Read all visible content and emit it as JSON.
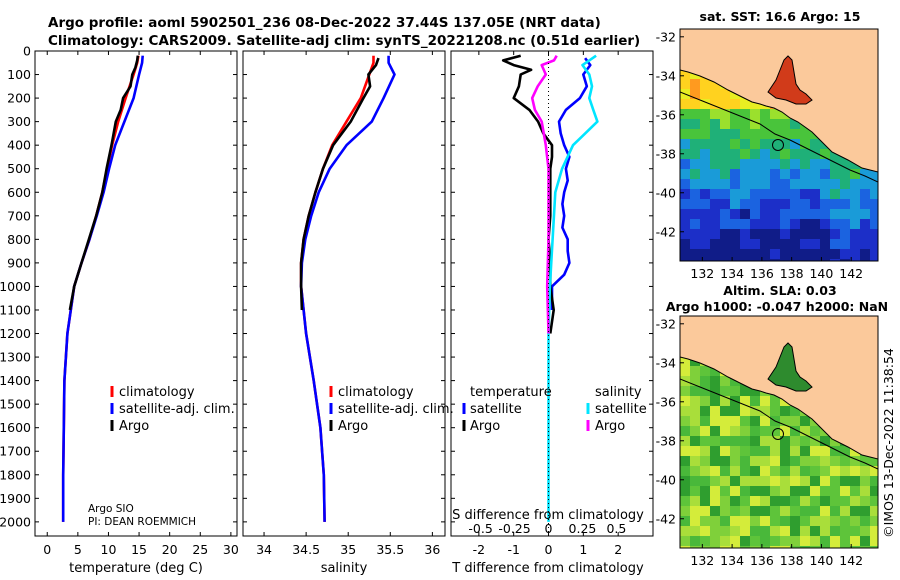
{
  "title": {
    "line1": "Argo profile: aoml 5902501_236 08-Dec-2022 37.44S 137.05E (NRT data)",
    "line2": "Climatology: CARS2009. Satellite-adj clim: synTS_20221208.nc (0.51d earlier)"
  },
  "credit": "©IMOS 13-Dec-2022 11:38:54",
  "colors": {
    "climatology": "#ff0000",
    "satellite": "#0000ff",
    "argo": "#000000",
    "sat_salinity": "#00e5ff",
    "argo_salinity": "#ff00ff",
    "land": "#fbc99b",
    "coast": "#000000"
  },
  "chart_data": [
    {
      "type": "line",
      "name": "temperature",
      "xlabel": "temperature (deg C)",
      "xlim": [
        -2,
        31
      ],
      "xticks": [
        0,
        5,
        10,
        15,
        20,
        25,
        30
      ],
      "ylim": [
        2060,
        0
      ],
      "yticks": [
        0,
        100,
        200,
        300,
        400,
        500,
        600,
        700,
        800,
        900,
        1000,
        1100,
        1200,
        1300,
        1400,
        1500,
        1600,
        1700,
        1800,
        1900,
        2000
      ],
      "legend": [
        "climatology",
        "satellite-adj. clim.",
        "Argo"
      ],
      "footnote": [
        "Argo SIO",
        "PI: DEAN ROEMMICH"
      ],
      "series": [
        {
          "name": "climatology",
          "color": "#ff0000",
          "depth": [
            2000,
            1800,
            1600,
            1400,
            1200,
            1000,
            900,
            800,
            700,
            600,
            500,
            400,
            300,
            200,
            100,
            50,
            20
          ],
          "values": [
            2.6,
            2.6,
            2.7,
            2.8,
            3.3,
            4.4,
            5.6,
            6.9,
            8.0,
            9.0,
            9.8,
            10.6,
            11.6,
            12.8,
            14.1,
            14.7,
            14.9
          ]
        },
        {
          "name": "satellite-adj. clim.",
          "color": "#0000ff",
          "depth": [
            2000,
            1800,
            1600,
            1400,
            1200,
            1000,
            900,
            800,
            700,
            600,
            500,
            400,
            300,
            200,
            100,
            50,
            20
          ],
          "values": [
            2.6,
            2.6,
            2.7,
            2.8,
            3.3,
            4.4,
            5.6,
            6.9,
            8.1,
            9.2,
            10.1,
            11.1,
            12.6,
            14.1,
            15.0,
            15.5,
            15.6
          ]
        },
        {
          "name": "Argo",
          "color": "#000000",
          "depth": [
            1100,
            1000,
            900,
            800,
            700,
            600,
            500,
            400,
            300,
            250,
            200,
            150,
            100,
            70,
            40,
            20
          ],
          "values": [
            3.7,
            4.4,
            5.6,
            6.8,
            8.0,
            9.0,
            9.7,
            10.5,
            11.2,
            12.0,
            12.4,
            13.6,
            13.9,
            14.4,
            14.7,
            14.8
          ]
        }
      ]
    },
    {
      "type": "line",
      "name": "salinity",
      "xlabel": "salinity",
      "xlim": [
        33.75,
        36.15
      ],
      "xticks": [
        34,
        34.5,
        35,
        35.5,
        36
      ],
      "ylim": [
        2060,
        0
      ],
      "legend": [
        "climatology",
        "satellite-adj. clim.",
        "Argo"
      ],
      "series": [
        {
          "name": "climatology",
          "color": "#ff0000",
          "depth": [
            2000,
            1800,
            1600,
            1400,
            1200,
            1000,
            900,
            800,
            700,
            600,
            500,
            400,
            300,
            200,
            100,
            50,
            20
          ],
          "values": [
            34.72,
            34.71,
            34.67,
            34.59,
            34.5,
            34.44,
            34.44,
            34.47,
            34.53,
            34.61,
            34.7,
            34.81,
            34.98,
            35.15,
            35.25,
            35.3,
            35.3
          ]
        },
        {
          "name": "satellite-adj. clim.",
          "color": "#0000ff",
          "depth": [
            2000,
            1800,
            1600,
            1400,
            1200,
            1000,
            900,
            800,
            700,
            600,
            500,
            400,
            300,
            200,
            100,
            50,
            20
          ],
          "values": [
            34.72,
            34.71,
            34.67,
            34.59,
            34.5,
            34.44,
            34.45,
            34.49,
            34.56,
            34.65,
            34.78,
            34.98,
            35.28,
            35.42,
            35.55,
            35.48,
            35.48
          ]
        },
        {
          "name": "Argo",
          "color": "#000000",
          "depth": [
            1100,
            1000,
            900,
            800,
            700,
            600,
            500,
            400,
            300,
            200,
            150,
            100,
            60,
            30
          ],
          "values": [
            34.45,
            34.44,
            34.44,
            34.47,
            34.53,
            34.61,
            34.7,
            34.82,
            35.03,
            35.18,
            35.26,
            35.24,
            35.33,
            35.36
          ]
        }
      ]
    },
    {
      "type": "line",
      "name": "difference from climatology",
      "xlabel": "T difference from climatology",
      "xlabel_top": "S difference from climatology",
      "xlim": [
        -2.8,
        3.0
      ],
      "xticks": [
        -2,
        -1,
        0,
        1,
        2
      ],
      "s_ticks": [
        -0.5,
        -0.25,
        0,
        0.25,
        0.5
      ],
      "s_tick_labels": [
        "-0.5",
        "-0.25",
        "0",
        "0.25",
        "0.5"
      ],
      "ylim": [
        2060,
        0
      ],
      "legend_left_title": "temperature",
      "legend_right_title": "salinity",
      "legend_left": [
        "satellite",
        "Argo"
      ],
      "legend_right": [
        "satellite",
        "Argo"
      ],
      "series": [
        {
          "name": "temperature satellite",
          "color": "#0000ff",
          "depth": [
            1100,
            1000,
            950,
            900,
            850,
            800,
            750,
            700,
            650,
            600,
            550,
            500,
            450,
            400,
            350,
            300,
            250,
            200,
            150,
            100,
            60,
            30
          ],
          "values": [
            0.1,
            0.1,
            0.45,
            0.6,
            0.55,
            0.55,
            0.4,
            0.45,
            0.4,
            0.45,
            0.55,
            0.5,
            0.6,
            0.45,
            0.35,
            0.3,
            0.5,
            0.9,
            1.1,
            1.0,
            1.2,
            1.05
          ]
        },
        {
          "name": "temperature Argo",
          "color": "#000000",
          "depth": [
            1200,
            1100,
            1000,
            900,
            800,
            700,
            600,
            500,
            450,
            400,
            350,
            300,
            250,
            200,
            150,
            100,
            80,
            60,
            40,
            20
          ],
          "values": [
            0.05,
            0.15,
            0.05,
            0.05,
            0.0,
            0.05,
            0.05,
            0.05,
            0.1,
            0.1,
            -0.15,
            -0.3,
            -0.55,
            -1.0,
            -0.85,
            -0.8,
            -0.5,
            -1.0,
            -1.3,
            -0.8
          ]
        },
        {
          "name": "salinity satellite",
          "color": "#00e5ff",
          "depth": [
            2000,
            1600,
            1200,
            1000,
            800,
            600,
            500,
            400,
            350,
            300,
            250,
            200,
            150,
            100,
            60,
            40,
            20
          ],
          "values": [
            0.0,
            0.0,
            0.0,
            0.01,
            0.03,
            0.05,
            0.1,
            0.18,
            0.27,
            0.36,
            0.33,
            0.3,
            0.32,
            0.3,
            0.25,
            0.3,
            0.35
          ]
        },
        {
          "name": "salinity Argo",
          "color": "#ff00ff",
          "depth": [
            1200,
            1000,
            800,
            600,
            500,
            400,
            300,
            250,
            200,
            150,
            100,
            60,
            40,
            20
          ],
          "values": [
            0.0,
            -0.01,
            0.0,
            0.0,
            0.0,
            -0.02,
            -0.05,
            -0.1,
            -0.12,
            -0.08,
            -0.02,
            -0.05,
            0.04,
            0.06
          ]
        }
      ]
    },
    {
      "type": "heatmap",
      "name": "sst_map",
      "title": "sat. SST: 16.6 Argo: 15",
      "xticks": [
        132,
        134,
        136,
        138,
        140,
        142
      ],
      "yticks": [
        -32,
        -34,
        -36,
        -38,
        -40,
        -42
      ],
      "xlim": [
        130.5,
        143.8
      ],
      "ylim": [
        -43.5,
        -31.6
      ],
      "argo_position": [
        137.05,
        -37.44
      ]
    },
    {
      "type": "heatmap",
      "name": "sla_map",
      "title1": "Altim. SLA: 0.03",
      "title2": "Argo h1000: -0.047 h2000: NaN",
      "xticks": [
        132,
        134,
        136,
        138,
        140,
        142
      ],
      "yticks": [
        -32,
        -34,
        -36,
        -38,
        -40,
        -42
      ],
      "xlim": [
        130.5,
        143.8
      ],
      "ylim": [
        -43.5,
        -31.6
      ],
      "argo_position": [
        137.05,
        -37.44
      ]
    }
  ]
}
